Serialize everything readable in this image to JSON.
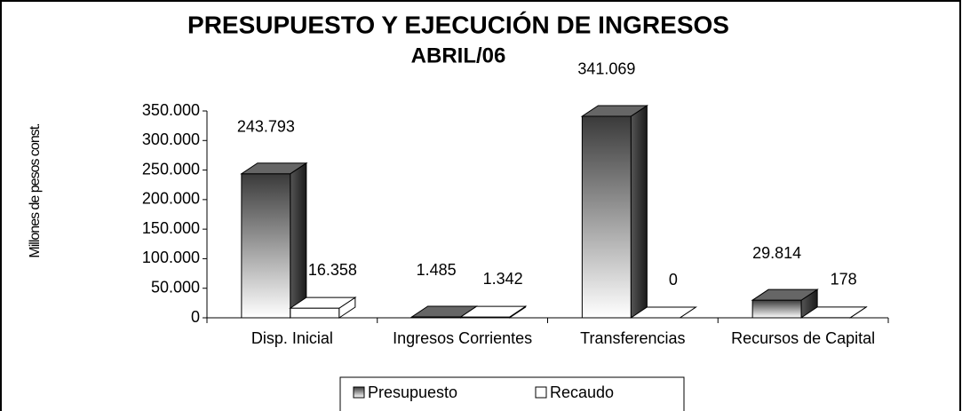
{
  "chart_data": {
    "type": "bar3d",
    "title": "PRESUPUESTO Y EJECUCIÓN DE INGRESOS",
    "subtitle": "ABRIL/06",
    "y_label": "Millones de pesos const.",
    "categories": [
      "Disp. Inicial",
      "Ingresos Corrientes",
      "Transferencias",
      "Recursos de Capital"
    ],
    "series": [
      {
        "name": "Presupuesto",
        "color": "#3a3a3a",
        "values": [
          243793,
          1485,
          341069,
          29814
        ],
        "value_labels": [
          "243.793",
          "1.485",
          "341.069",
          "29.814"
        ]
      },
      {
        "name": "Recaudo",
        "color": "#ffffff",
        "values": [
          16358,
          1342,
          0,
          178
        ],
        "value_labels": [
          "16.358",
          "1.342",
          "0",
          "178"
        ]
      }
    ],
    "ylim": [
      0,
      350000
    ],
    "yticks": [
      0,
      {
        "value": 50000,
        "label": "50.000"
      },
      {
        "value": 100000,
        "label": "100.000"
      },
      {
        "value": 150000,
        "label": "150.000"
      },
      {
        "value": 200000,
        "label": "200.000"
      },
      {
        "value": 250000,
        "label": "250.000"
      },
      {
        "value": 300000,
        "label": "300.000"
      },
      {
        "value": 350000,
        "label": "350.000"
      }
    ],
    "legend": "bottom"
  }
}
